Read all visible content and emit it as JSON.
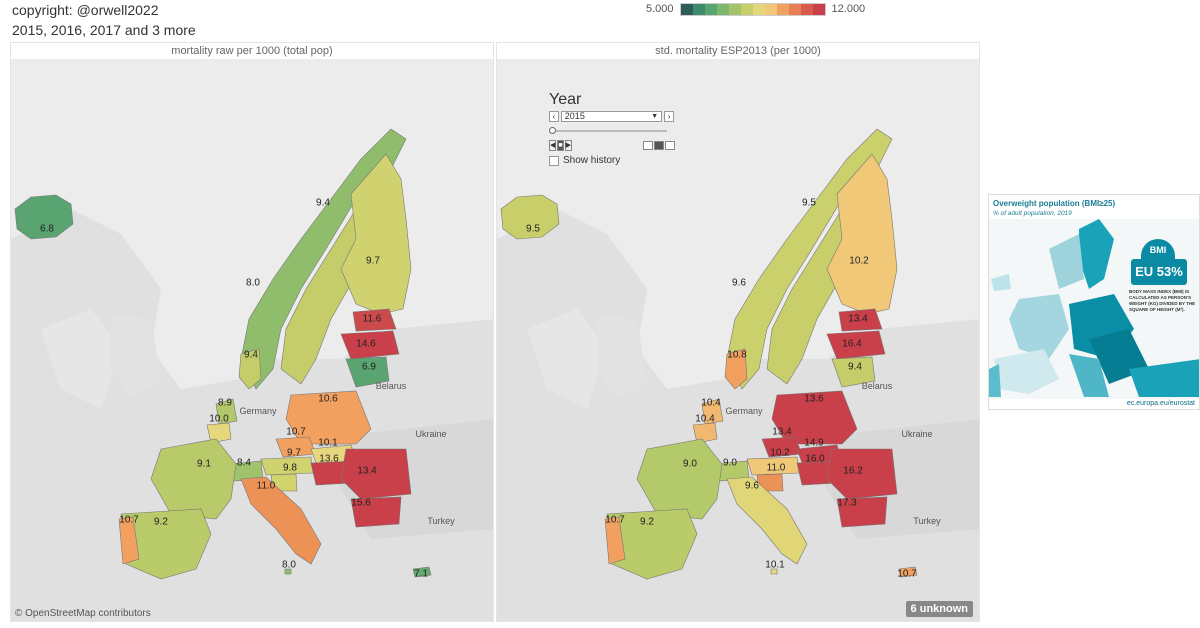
{
  "header": {
    "copyright": "copyright: @orwell2022",
    "years_filter": "2015, 2016, 2017 and 3 more"
  },
  "legend": {
    "min_label": "5.000",
    "max_label": "12.000",
    "colors": [
      "#2f5d57",
      "#3f8a6a",
      "#5aa472",
      "#7eb76e",
      "#a3c468",
      "#c8cf6a",
      "#e3d77a",
      "#f0c878",
      "#f1a060",
      "#e77e55",
      "#d85a4d",
      "#c9404a"
    ]
  },
  "left_panel": {
    "title": "mortality raw per 1000 (total pop)",
    "attribution": "© OpenStreetMap contributors",
    "countries": [
      {
        "name": "Iceland",
        "value": "6.8",
        "color": "#5aa472"
      },
      {
        "name": "Norway",
        "value": "8.0",
        "color": "#8fbd6c"
      },
      {
        "name": "Sweden",
        "value": "9.4",
        "color": "#c4cd69"
      },
      {
        "name": "Finland",
        "value": "9.7",
        "color": "#d0d26f"
      },
      {
        "name": "Estonia",
        "value": "11.6",
        "color": "#cd4a4c"
      },
      {
        "name": "Latvia",
        "value": "14.6",
        "color": "#c9404a"
      },
      {
        "name": "Lithuania",
        "value": "6.9",
        "color": "#5aa472"
      },
      {
        "name": "Denmark",
        "value": "9.4",
        "color": "#c4cd69"
      },
      {
        "name": "Netherlands",
        "value": "8.9",
        "color": "#b2c86a"
      },
      {
        "name": "Belgium",
        "value": "10.0",
        "color": "#e6d67c"
      },
      {
        "name": "Poland",
        "value": "10.6",
        "color": "#f1a060"
      },
      {
        "name": "Czechia",
        "value": "10.7",
        "color": "#f1a060"
      },
      {
        "name": "Slovakia",
        "value": "10.1",
        "color": "#e6d67c"
      },
      {
        "name": "Austria",
        "value": "9.7",
        "color": "#d0d26f"
      },
      {
        "name": "Hungary",
        "value": "13.6",
        "color": "#c9404a"
      },
      {
        "name": "Romania",
        "value": "13.4",
        "color": "#c9404a"
      },
      {
        "name": "Bulgaria",
        "value": "15.6",
        "color": "#c9404a"
      },
      {
        "name": "Slovenia",
        "value": "9.8",
        "color": "#d2d36f"
      },
      {
        "name": "Switzerland",
        "value": "8.4",
        "color": "#9fc26a"
      },
      {
        "name": "France",
        "value": "9.1",
        "color": "#b8ca6a"
      },
      {
        "name": "Italy",
        "value": "11.0",
        "color": "#ed9257"
      },
      {
        "name": "Spain",
        "value": "9.2",
        "color": "#bacb69"
      },
      {
        "name": "Portugal",
        "value": "10.7",
        "color": "#f1a060"
      },
      {
        "name": "Malta",
        "value": "8.0",
        "color": "#8fbd6c"
      },
      {
        "name": "Cyprus",
        "value": "7.1",
        "color": "#66aa72"
      }
    ],
    "place_labels": [
      "Belarus",
      "Germany",
      "Ukraine",
      "Turkey"
    ]
  },
  "right_panel": {
    "title": "std. mortality ESP2013  (per 1000)",
    "unknown_badge": "6 unknown",
    "countries": [
      {
        "name": "Iceland",
        "value": "9.5",
        "color": "#c8cf6a"
      },
      {
        "name": "Norway",
        "value": "9.6",
        "color": "#cad06b"
      },
      {
        "name": "Sweden",
        "value": "9.5",
        "color": "#c8cf6a"
      },
      {
        "name": "Finland",
        "value": "10.2",
        "color": "#f0c878"
      },
      {
        "name": "Estonia",
        "value": "13.4",
        "color": "#c9404a"
      },
      {
        "name": "Latvia",
        "value": "16.4",
        "color": "#c9404a"
      },
      {
        "name": "Lithuania",
        "value": "9.4",
        "color": "#c4cd69"
      },
      {
        "name": "Denmark",
        "value": "10.8",
        "color": "#f1a060"
      },
      {
        "name": "Netherlands",
        "value": "10.4",
        "color": "#f0b870"
      },
      {
        "name": "Belgium",
        "value": "10.4",
        "color": "#f0b870"
      },
      {
        "name": "Poland",
        "value": "13.6",
        "color": "#c9404a"
      },
      {
        "name": "Czechia",
        "value": "13.4",
        "color": "#c9404a"
      },
      {
        "name": "Slovakia",
        "value": "14.9",
        "color": "#c9404a"
      },
      {
        "name": "Austria",
        "value": "10.2",
        "color": "#f0c878"
      },
      {
        "name": "Hungary",
        "value": "16.0",
        "color": "#c9404a"
      },
      {
        "name": "Romania",
        "value": "16.2",
        "color": "#c9404a"
      },
      {
        "name": "Bulgaria",
        "value": "17.3",
        "color": "#c9404a"
      },
      {
        "name": "Slovenia",
        "value": "11.0",
        "color": "#ed9257"
      },
      {
        "name": "Switzerland",
        "value": "9.0",
        "color": "#b4c96a"
      },
      {
        "name": "France",
        "value": "9.0",
        "color": "#b4c96a"
      },
      {
        "name": "Italy",
        "value": "9.6",
        "color": "#e0d678"
      },
      {
        "name": "Spain",
        "value": "9.2",
        "color": "#bacb69"
      },
      {
        "name": "Portugal",
        "value": "10.7",
        "color": "#f1a060"
      },
      {
        "name": "Malta",
        "value": "10.1",
        "color": "#e6d67c"
      },
      {
        "name": "Cyprus",
        "value": "10.7",
        "color": "#f1a060"
      }
    ],
    "place_labels": [
      "Belarus",
      "Germany",
      "Ukraine",
      "Turkey"
    ]
  },
  "year_control": {
    "title": "Year",
    "selected": "2015",
    "show_history_label": "Show history",
    "prev_icon": "chevron-left-icon",
    "next_icon": "chevron-right-icon"
  },
  "inset": {
    "title": "Overweight population (BMI≥25)",
    "subtitle": "% of adult population, 2019",
    "badge_bmi": "BMI",
    "badge_eu": "EU 53%",
    "note": "BODY MASS INDEX (BMI) IS CALCULATED AS PERSON'S WEIGHT (KG) DIVIDED BY THE SQUARE OF HEIGHT (M²).",
    "footer": "ec.europa.eu/eurostat"
  }
}
